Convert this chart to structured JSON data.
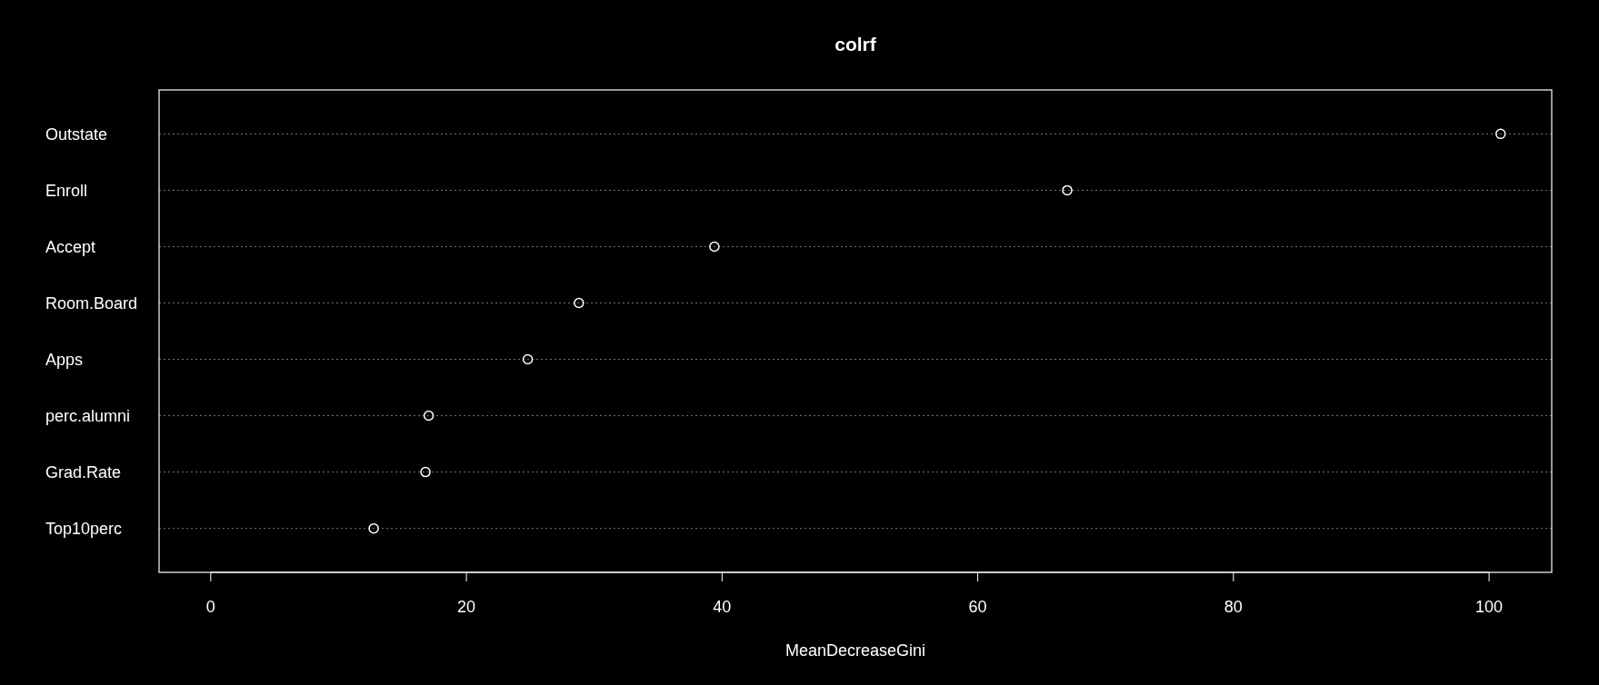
{
  "chart_data": {
    "type": "scatter",
    "title": "colrf",
    "xlabel": "MeanDecreaseGini",
    "orientation": "horizontal",
    "categories": [
      "Outstate",
      "Enroll",
      "Accept",
      "Room.Board",
      "Apps",
      "perc.alumni",
      "Grad.Rate",
      "Top10perc"
    ],
    "values": [
      100.9,
      67.0,
      39.4,
      28.8,
      24.8,
      17.05,
      16.8,
      12.75
    ],
    "color": "#ffffff",
    "marker": "circle",
    "grid": "y",
    "xlim": [
      -4.04,
      104.9
    ],
    "xticks": [
      0,
      20,
      40,
      60,
      80,
      100
    ]
  }
}
